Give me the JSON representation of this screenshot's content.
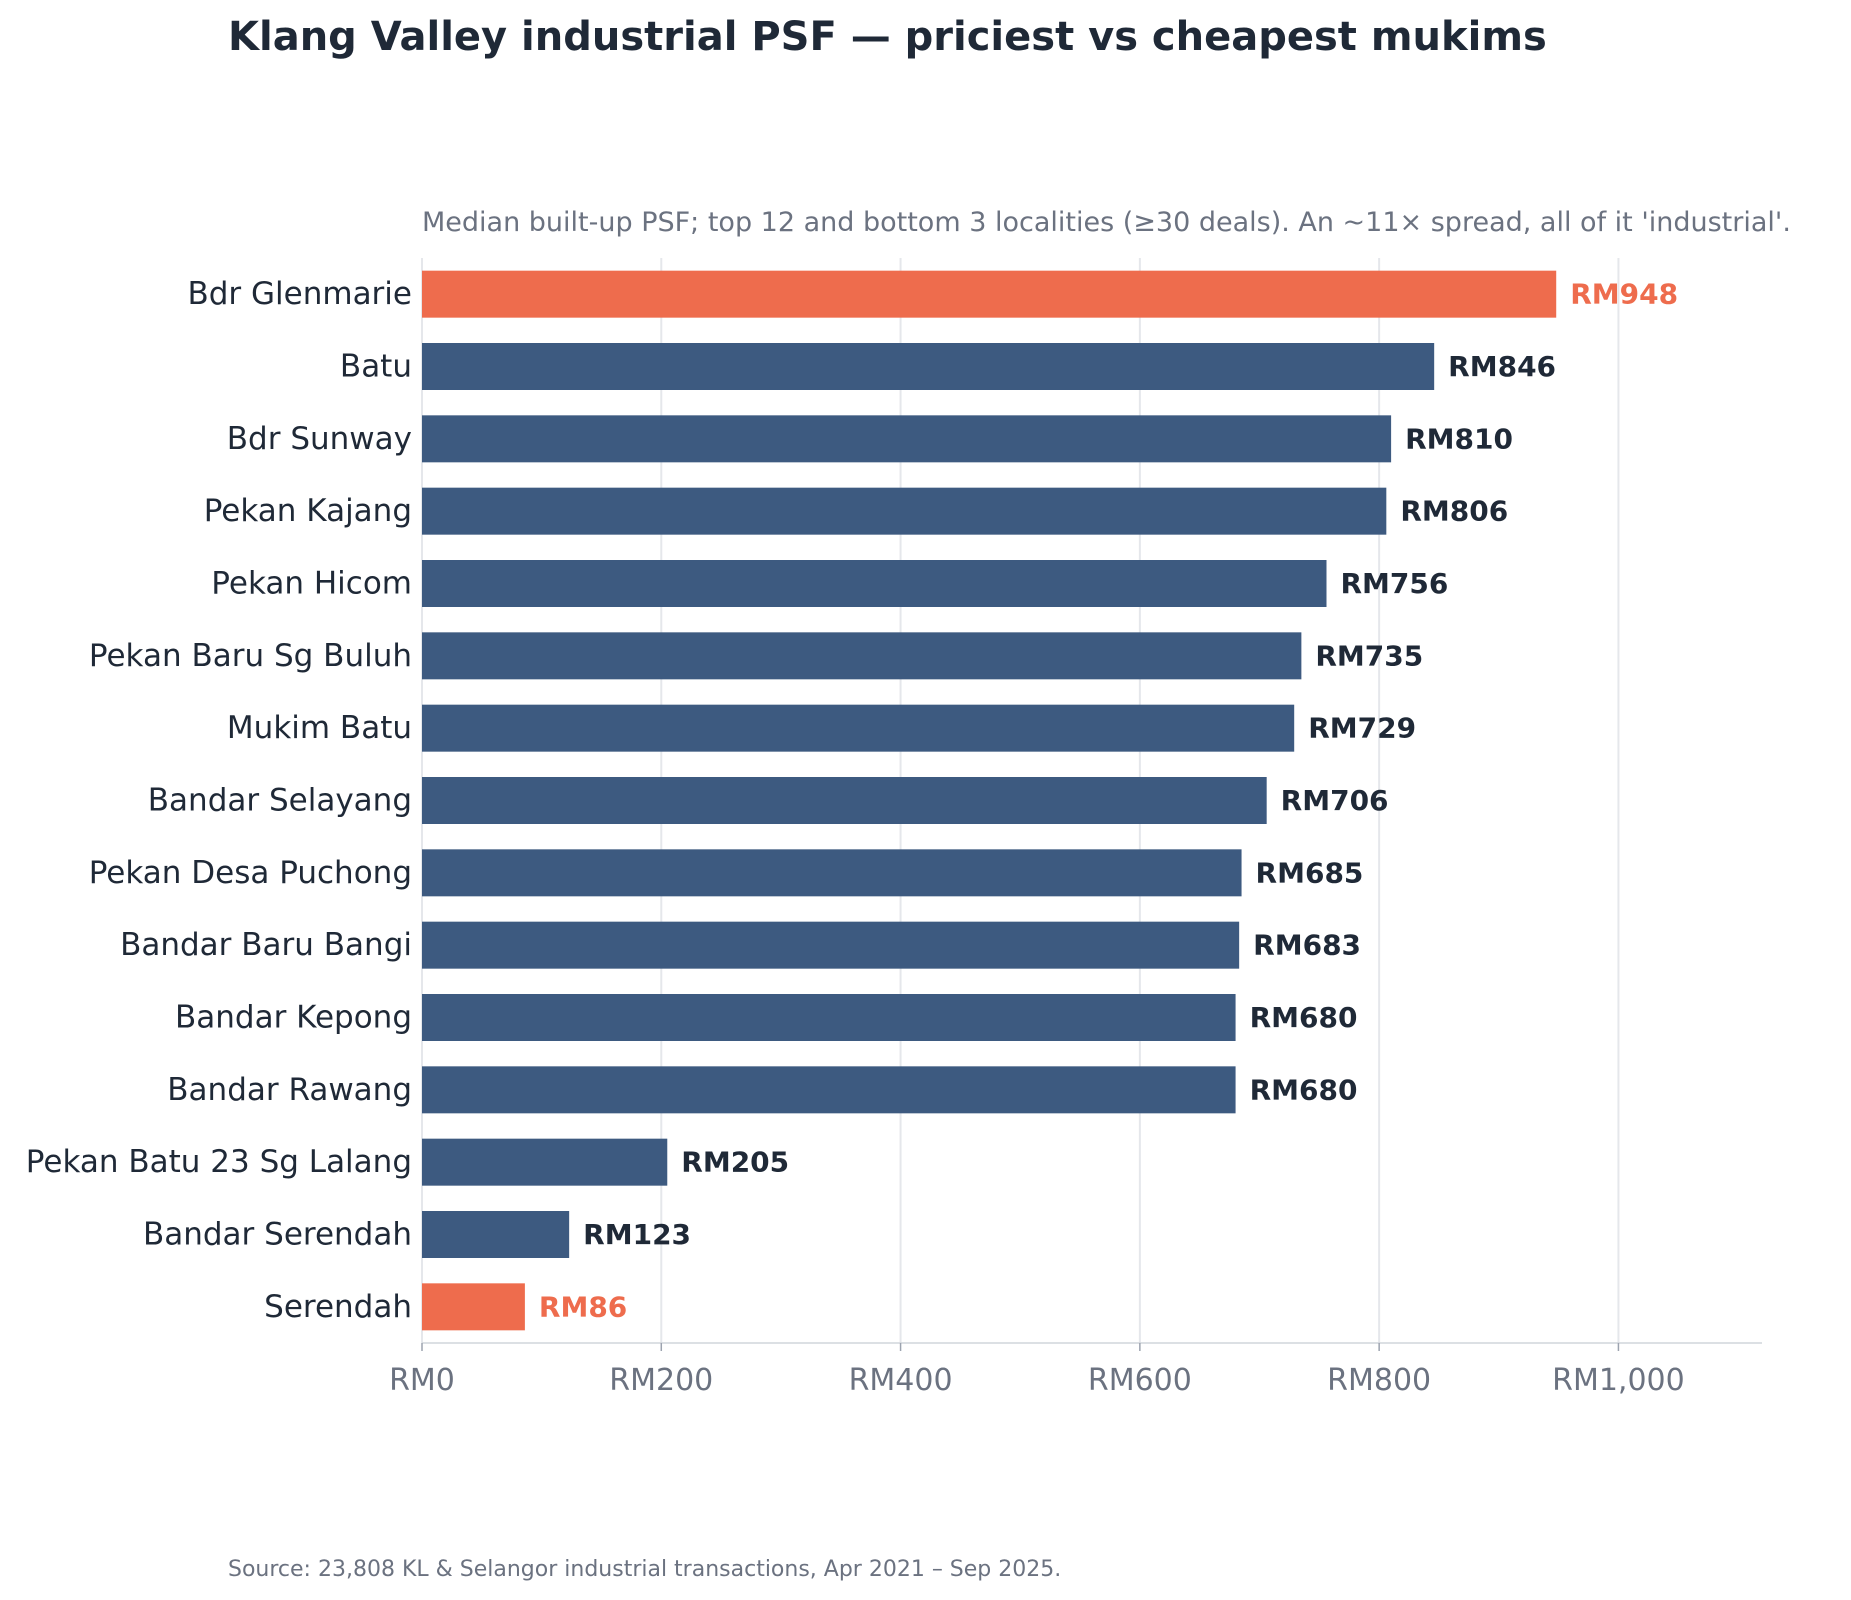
{
  "chart_data": {
    "type": "bar",
    "orientation": "horizontal",
    "title": "Klang Valley industrial PSF — priciest vs cheapest mukims",
    "subtitle": "Median built-up PSF; top 12 and bottom 3 localities (≥30 deals). An ~11× spread, all of it 'industrial'.",
    "source": "Source: 23,808 KL & Selangor industrial transactions, Apr 2021 – Sep 2025.",
    "categories": [
      "Bdr Glenmarie",
      "Batu",
      "Bdr Sunway",
      "Pekan Kajang",
      "Pekan Hicom",
      "Pekan Baru Sg Buluh",
      "Mukim Batu",
      "Bandar Selayang",
      "Pekan Desa Puchong",
      "Bandar Baru Bangi",
      "Bandar Kepong",
      "Bandar Rawang",
      "Pekan Batu 23 Sg Lalang",
      "Bandar Serendah",
      "Serendah"
    ],
    "values": [
      948,
      846,
      810,
      806,
      756,
      735,
      729,
      706,
      685,
      683,
      680,
      680,
      205,
      123,
      86
    ],
    "value_labels": [
      "RM948",
      "RM846",
      "RM810",
      "RM806",
      "RM756",
      "RM735",
      "RM729",
      "RM706",
      "RM685",
      "RM683",
      "RM680",
      "RM680",
      "RM205",
      "RM123",
      "RM86"
    ],
    "highlighted": [
      0,
      14
    ],
    "xlim": [
      0,
      1120
    ],
    "xticks": [
      0,
      200,
      400,
      600,
      800,
      1000
    ],
    "xtick_labels": [
      "RM0",
      "RM200",
      "RM400",
      "RM600",
      "RM800",
      "RM1,000"
    ],
    "xlabel": "",
    "ylabel": "",
    "grid": "vertical",
    "colors": {
      "base": "#3d5a80",
      "highlight": "#ee6c4d",
      "label": "#1f2937",
      "axis_text": "#6b7280",
      "grid": "#e5e7eb"
    }
  }
}
